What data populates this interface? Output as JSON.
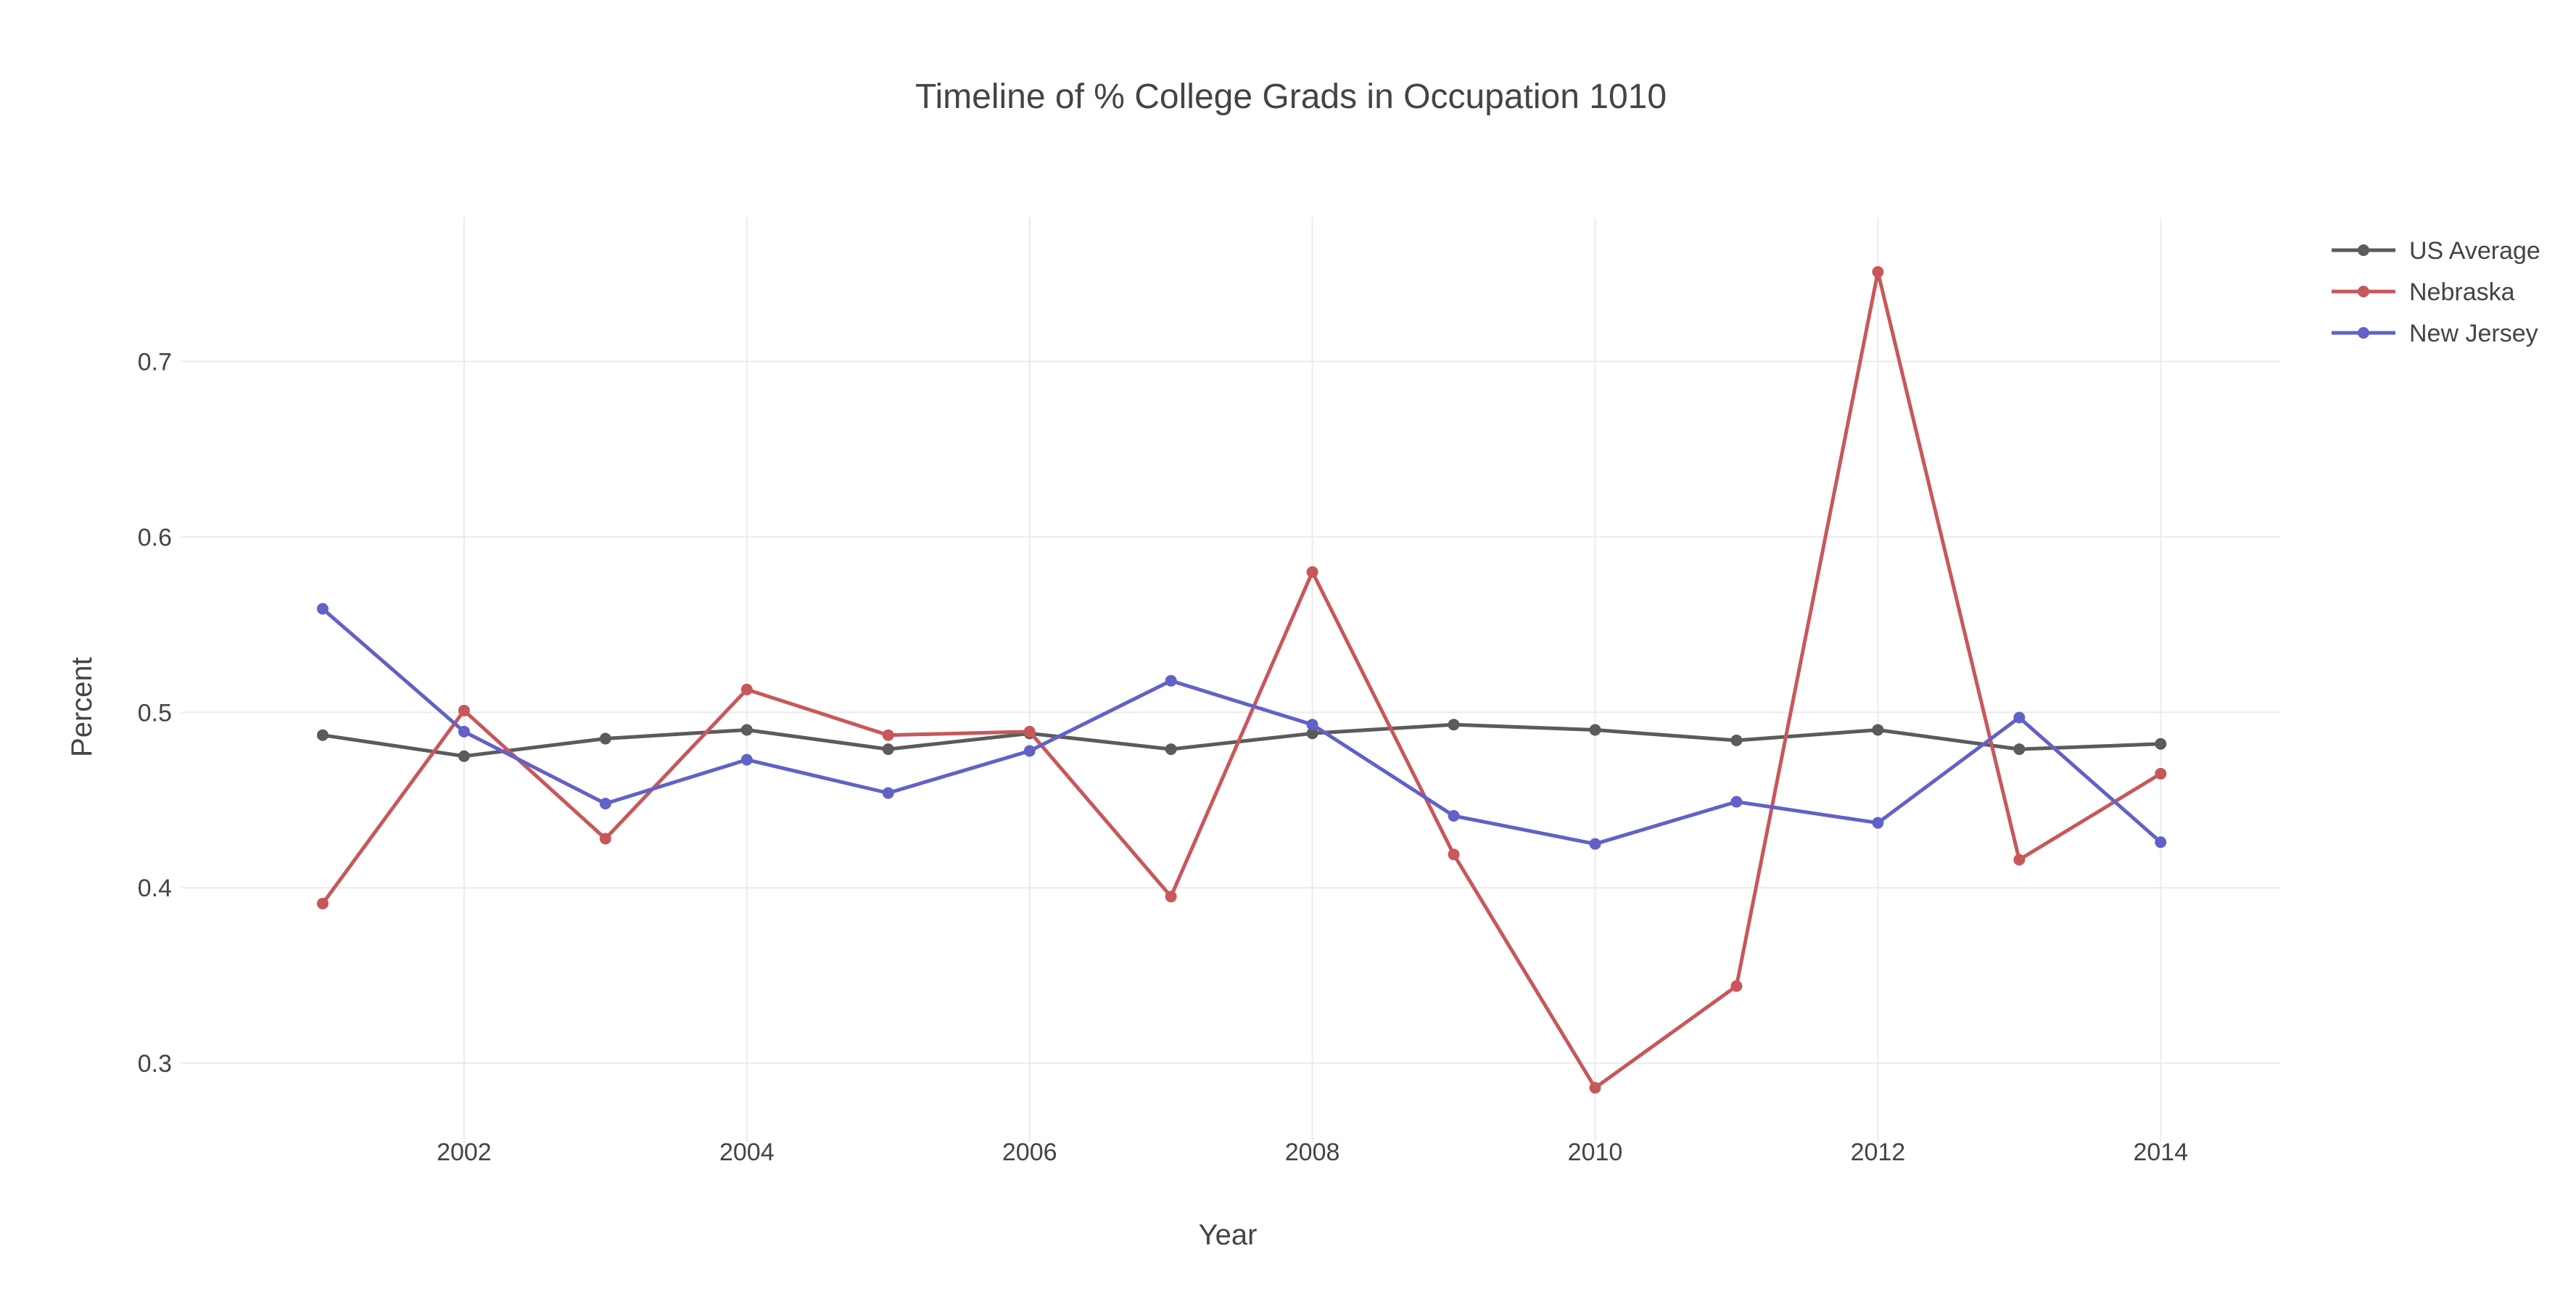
{
  "chart_data": {
    "type": "line",
    "title": "Timeline of % College Grads in Occupation 1010",
    "xlabel": "Year",
    "ylabel": "Percent",
    "x": [
      2001,
      2002,
      2003,
      2004,
      2005,
      2006,
      2007,
      2008,
      2009,
      2010,
      2011,
      2012,
      2013,
      2014
    ],
    "xticks": [
      "2002",
      "2004",
      "2006",
      "2008",
      "2010",
      "2012",
      "2014"
    ],
    "xtick_values": [
      2002,
      2004,
      2006,
      2008,
      2010,
      2012,
      2014
    ],
    "yticks": [
      "0.3",
      "0.4",
      "0.5",
      "0.6",
      "0.7"
    ],
    "ytick_values": [
      0.3,
      0.4,
      0.5,
      0.6,
      0.7
    ],
    "xlim": [
      2000.0,
      2014.85
    ],
    "ylim": [
      0.255,
      0.782
    ],
    "grid": true,
    "legend_position": "top-right",
    "series": [
      {
        "name": "US Average",
        "color": "#5b5b5b",
        "values": [
          0.487,
          0.475,
          0.485,
          0.49,
          0.479,
          0.488,
          0.479,
          0.488,
          0.493,
          0.49,
          0.484,
          0.49,
          0.479,
          0.482
        ]
      },
      {
        "name": "Nebraska",
        "color": "#c8575b",
        "values": [
          0.391,
          0.501,
          0.428,
          0.513,
          0.487,
          0.489,
          0.395,
          0.58,
          0.419,
          0.286,
          0.344,
          0.751,
          0.416,
          0.465
        ]
      },
      {
        "name": "New Jersey",
        "color": "#6161c8",
        "values": [
          0.559,
          0.489,
          0.448,
          0.473,
          0.454,
          0.478,
          0.518,
          0.493,
          0.441,
          0.425,
          0.449,
          0.437,
          0.497,
          0.426
        ]
      }
    ]
  }
}
